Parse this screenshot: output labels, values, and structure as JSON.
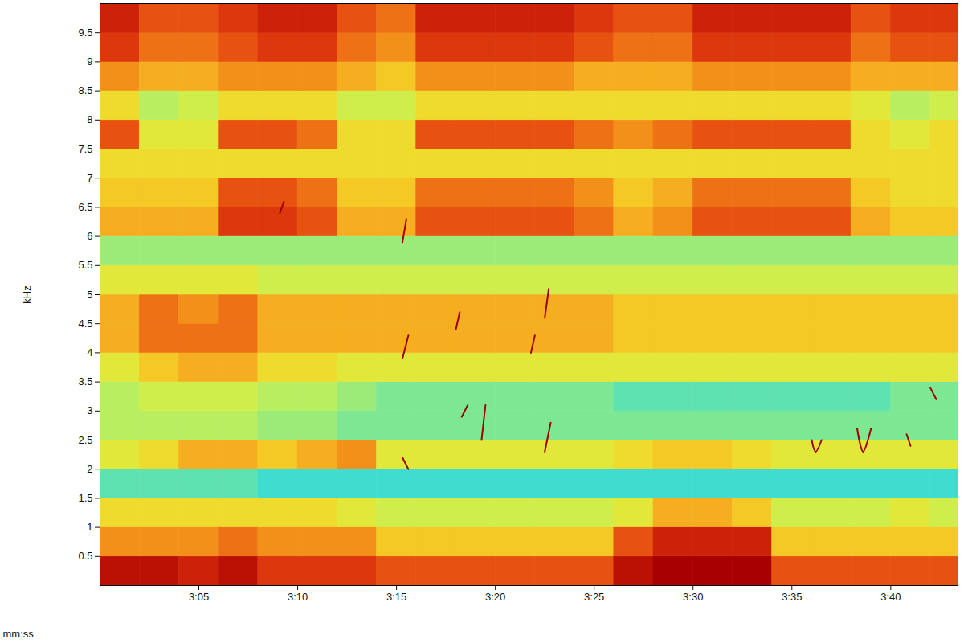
{
  "chart_data": {
    "type": "heatmap",
    "x_label": "mm:ss",
    "y_label": "kHz",
    "xlim": [
      180,
      223.4
    ],
    "ylim": [
      0,
      10
    ],
    "xticks": [
      {
        "value": 185,
        "label": "3:05"
      },
      {
        "value": 190,
        "label": "3:10"
      },
      {
        "value": 195,
        "label": "3:15"
      },
      {
        "value": 200,
        "label": "3:20"
      },
      {
        "value": 205,
        "label": "3:25"
      },
      {
        "value": 210,
        "label": "3:30"
      },
      {
        "value": 215,
        "label": "3:35"
      },
      {
        "value": 220,
        "label": "3:40"
      }
    ],
    "yticks": [
      0.5,
      1,
      1.5,
      2,
      2.5,
      3,
      3.5,
      4,
      4.5,
      5,
      5.5,
      6,
      6.5,
      7,
      7.5,
      8,
      8.5,
      9,
      9.5
    ],
    "times": [
      180,
      182,
      184,
      186,
      188,
      190,
      192,
      194,
      196,
      198,
      200,
      202,
      204,
      206,
      208,
      210,
      212,
      214,
      216,
      218,
      220,
      222
    ],
    "freqs": [
      0,
      0.5,
      1,
      1.5,
      2,
      2.5,
      3,
      3.5,
      4,
      4.5,
      5,
      5.5,
      6,
      6.5,
      7,
      7.5,
      8,
      8.5,
      9,
      9.5
    ],
    "levels": [
      [
        8.5,
        8.5,
        8,
        8.5,
        7.5,
        7.5,
        7.5,
        7,
        7,
        7,
        7,
        7,
        7,
        8.5,
        9,
        9,
        9,
        7,
        7,
        7,
        7,
        7
      ],
      [
        6,
        6,
        6,
        6.5,
        6,
        6,
        6,
        5,
        5,
        5,
        5,
        5,
        5,
        7,
        8,
        8,
        8,
        5,
        5,
        5,
        5,
        5
      ],
      [
        4.5,
        4.5,
        4.5,
        4.5,
        4.5,
        4.5,
        4,
        3.5,
        3.5,
        3.5,
        3.5,
        3.5,
        3.5,
        4,
        5.5,
        5.5,
        5,
        3.5,
        3.5,
        3.5,
        4,
        3.5
      ],
      [
        1.5,
        1.5,
        1.5,
        1.5,
        1,
        1,
        1,
        1,
        1,
        1,
        1,
        1,
        1,
        1,
        1,
        1,
        1,
        1,
        1,
        1,
        1,
        1
      ],
      [
        4,
        4.5,
        5.5,
        5.5,
        5,
        5.5,
        6,
        4,
        4,
        4,
        4,
        4,
        4,
        4.5,
        5,
        5,
        4.5,
        4,
        4,
        4,
        4,
        4
      ],
      [
        3,
        3,
        3,
        3,
        2.5,
        2.5,
        2,
        2,
        2,
        2,
        2,
        2,
        2,
        2,
        2,
        2,
        2,
        2,
        2,
        2,
        2,
        2
      ],
      [
        3,
        3.5,
        3.5,
        3.5,
        3,
        3,
        2.5,
        2,
        2,
        2,
        2,
        2,
        2,
        1.5,
        1.5,
        1.5,
        1.5,
        1.5,
        1.5,
        1.5,
        2,
        2
      ],
      [
        4,
        5,
        5.5,
        5.5,
        4.5,
        4.5,
        4,
        4,
        4,
        4,
        4,
        4,
        4,
        4,
        4,
        4,
        4,
        4,
        4,
        4,
        4,
        4
      ],
      [
        5.5,
        6.5,
        6.5,
        6.5,
        5.5,
        5.5,
        5.5,
        5.5,
        5.5,
        5.5,
        5.5,
        5.5,
        5.5,
        5,
        5,
        5,
        5,
        5,
        5,
        5,
        5,
        5
      ],
      [
        5.5,
        6.5,
        6,
        6.5,
        5.5,
        5.5,
        5.5,
        5.5,
        5.5,
        5.5,
        5.5,
        5.5,
        5.5,
        5,
        5,
        5,
        5,
        5,
        5,
        5,
        5,
        5
      ],
      [
        4,
        4,
        4,
        4,
        3.5,
        3.5,
        3.5,
        3.5,
        3.5,
        3.5,
        3.5,
        3.5,
        3.5,
        3.5,
        3.5,
        3.5,
        3.5,
        3.5,
        3.5,
        3.5,
        3.5,
        3.5
      ],
      [
        2.5,
        2.5,
        2.5,
        2.5,
        2.5,
        2.5,
        2.5,
        2.5,
        2.5,
        2.5,
        2.5,
        2.5,
        2.5,
        2.5,
        2.5,
        2.5,
        2.5,
        2.5,
        2.5,
        2.5,
        2.5,
        2.5
      ],
      [
        5.5,
        5.5,
        5.5,
        7.5,
        7.5,
        7,
        5.5,
        5.5,
        7,
        7,
        7,
        7,
        6.5,
        5.5,
        6,
        7,
        7,
        7,
        7,
        5.5,
        5,
        5
      ],
      [
        5,
        5,
        5,
        7,
        7,
        6.5,
        5,
        5,
        6.5,
        6.5,
        6.5,
        6.5,
        6,
        5,
        5.5,
        6.5,
        6.5,
        6.5,
        6.5,
        5,
        4.5,
        4.5
      ],
      [
        4.5,
        4.5,
        4.5,
        4.5,
        4.5,
        4.5,
        4.5,
        4.5,
        4.5,
        4.5,
        4.5,
        4.5,
        4.5,
        4.5,
        4.5,
        4.5,
        4.5,
        4.5,
        4.5,
        4.5,
        4.5,
        4.5
      ],
      [
        7,
        4,
        4,
        7,
        7,
        6.5,
        4.5,
        4.5,
        7,
        7,
        7,
        7,
        6.5,
        6,
        6.5,
        7,
        7,
        7,
        7,
        4.5,
        4,
        4.5
      ],
      [
        4.5,
        3,
        3.5,
        4.5,
        4.5,
        4.5,
        3.5,
        3.5,
        4.5,
        4.5,
        4.5,
        4.5,
        4.5,
        4.5,
        4.5,
        4.5,
        4.5,
        4.5,
        4.5,
        4,
        3,
        3.5
      ],
      [
        6,
        5.5,
        5.5,
        6,
        6,
        6,
        5.5,
        5,
        6,
        6,
        6,
        6,
        5.5,
        5.5,
        5.5,
        6,
        6,
        6,
        6,
        5.5,
        5.5,
        5.5
      ],
      [
        7.5,
        6.5,
        6.5,
        7,
        7.5,
        7.5,
        6.5,
        6,
        7.5,
        7.5,
        7.5,
        7.5,
        7,
        6.5,
        6.5,
        7.5,
        7.5,
        7.5,
        7.5,
        6.5,
        7,
        7
      ],
      [
        8,
        7,
        7,
        7.5,
        8,
        8,
        7,
        6.5,
        8,
        8,
        8,
        8,
        7.5,
        7,
        7,
        8,
        8,
        8,
        8,
        7,
        7.5,
        7.5
      ]
    ],
    "call_traces": [
      [
        [
          195.6,
          4.3
        ],
        [
          195.3,
          3.9
        ]
      ],
      [
        [
          195.5,
          6.3
        ],
        [
          195.3,
          5.9
        ]
      ],
      [
        [
          195.3,
          2.2
        ],
        [
          195.6,
          2.0
        ]
      ],
      [
        [
          198.2,
          4.7
        ],
        [
          198.0,
          4.4
        ]
      ],
      [
        [
          198.6,
          3.1
        ],
        [
          198.3,
          2.9
        ]
      ],
      [
        [
          199.5,
          3.1
        ],
        [
          199.3,
          2.5
        ]
      ],
      [
        [
          202.0,
          4.3
        ],
        [
          201.8,
          4.0
        ]
      ],
      [
        [
          202.7,
          5.1
        ],
        [
          202.5,
          4.6
        ]
      ],
      [
        [
          202.8,
          2.8
        ],
        [
          202.5,
          2.3
        ]
      ],
      [
        [
          189.3,
          6.6
        ],
        [
          189.1,
          6.4
        ]
      ],
      [
        [
          216.0,
          2.5
        ],
        [
          216.2,
          2.3
        ],
        [
          216.5,
          2.5
        ]
      ],
      [
        [
          218.3,
          2.7
        ],
        [
          218.6,
          2.3
        ],
        [
          219.0,
          2.7
        ]
      ],
      [
        [
          220.8,
          2.6
        ],
        [
          221.0,
          2.4
        ]
      ],
      [
        [
          222.0,
          3.4
        ],
        [
          222.3,
          3.2
        ]
      ]
    ]
  }
}
